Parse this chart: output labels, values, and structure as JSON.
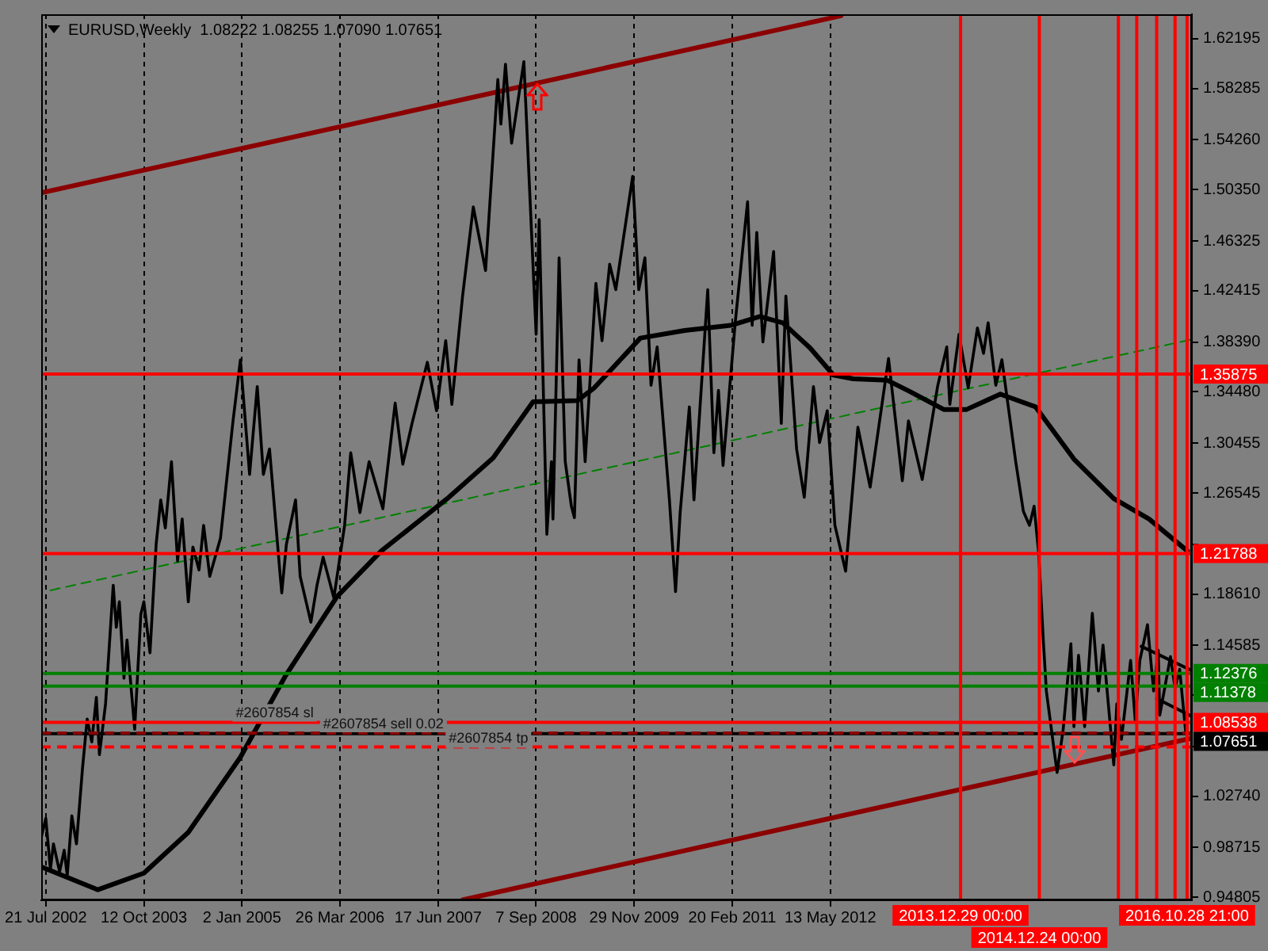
{
  "chart_data": {
    "type": "line",
    "title": "EURUSD,Weekly  1.08222 1.08255 1.07090 1.07651",
    "xlim": [
      "2002-06-30",
      "2016-11-20"
    ],
    "xticks": [
      {
        "value": "2002-07-21",
        "label": "21 Jul 2002"
      },
      {
        "value": "2003-10-12",
        "label": "12 Oct 2003"
      },
      {
        "value": "2005-01-02",
        "label": "2 Jan 2005"
      },
      {
        "value": "2006-03-26",
        "label": "26 Mar 2006"
      },
      {
        "value": "2007-06-17",
        "label": "17 Jun 2007"
      },
      {
        "value": "2008-09-07",
        "label": "7 Sep 2008"
      },
      {
        "value": "2009-11-29",
        "label": "29 Nov 2009"
      },
      {
        "value": "2011-02-20",
        "label": "20 Feb 2011"
      },
      {
        "value": "2012-05-13",
        "label": "13 May 2012"
      }
    ],
    "ylim": [
      0.9457,
      1.6412
    ],
    "yticks": [
      1.62195,
      1.58285,
      {
        "value": 1.5426,
        "label": "1.54260"
      },
      {
        "value": 1.5035,
        "label": "1.50350"
      },
      1.46325,
      1.42415,
      {
        "value": 1.3839,
        "label": "1.38390"
      },
      {
        "value": 1.3448,
        "label": "1.34480"
      },
      1.30455,
      1.26545,
      {
        "value": 1.2252,
        "label": null
      },
      {
        "value": 1.1861,
        "label": "1.18610"
      },
      1.14585,
      {
        "value": 1.10675,
        "label": null
      },
      {
        "value": 1.0665,
        "label": null
      },
      {
        "value": 1.0274,
        "label": "1.02740"
      },
      0.98715,
      0.94805
    ],
    "grid": "x",
    "series": [
      {
        "color": "#000000",
        "x": [
          "2002-06-30",
          "2002-07-21",
          "2002-08-11",
          "2002-08-25",
          "2002-09-22",
          "2002-10-13",
          "2002-10-27",
          "2002-11-17",
          "2002-12-08",
          "2003-01-05",
          "2003-01-26",
          "2003-02-16",
          "2003-03-09",
          "2003-03-23",
          "2003-04-20",
          "2003-05-25",
          "2003-06-08",
          "2003-06-22",
          "2003-07-13",
          "2003-07-27",
          "2003-08-31",
          "2003-09-28",
          "2003-10-12",
          "2003-11-09",
          "2003-12-07",
          "2003-12-28",
          "2004-01-18",
          "2004-02-15",
          "2004-03-14",
          "2004-04-04",
          "2004-05-02",
          "2004-05-23",
          "2004-06-20",
          "2004-07-11",
          "2004-08-08",
          "2004-09-26",
          "2004-10-24",
          "2004-11-21",
          "2004-12-26",
          "2005-02-06",
          "2005-03-13",
          "2005-04-10",
          "2005-05-08",
          "2005-06-26",
          "2005-07-03",
          "2005-07-24",
          "2005-09-04",
          "2005-09-25",
          "2005-11-13",
          "2005-12-11",
          "2006-01-08",
          "2006-02-26",
          "2006-04-16",
          "2006-05-14",
          "2006-06-25",
          "2006-08-06",
          "2006-10-08",
          "2006-12-03",
          "2007-01-07",
          "2007-02-18",
          "2007-04-29",
          "2007-06-10",
          "2007-07-22",
          "2007-08-19",
          "2007-10-07",
          "2007-11-25",
          "2008-01-20",
          "2008-03-16",
          "2008-03-30",
          "2008-04-20",
          "2008-05-18",
          "2008-07-13",
          "2008-08-17",
          "2008-09-07",
          "2008-09-21",
          "2008-10-26",
          "2008-11-16",
          "2008-11-23",
          "2008-12-21",
          "2009-01-18",
          "2009-02-15",
          "2009-03-01",
          "2009-03-22",
          "2009-04-19",
          "2009-06-07",
          "2009-07-05",
          "2009-08-09",
          "2009-09-06",
          "2009-11-22",
          "2009-12-20",
          "2010-01-17",
          "2010-02-14",
          "2010-03-14",
          "2010-05-09",
          "2010-06-06",
          "2010-06-27",
          "2010-08-08",
          "2010-08-29",
          "2010-10-31",
          "2010-11-28",
          "2010-12-19",
          "2011-01-09",
          "2011-03-06",
          "2011-05-01",
          "2011-05-22",
          "2011-06-12",
          "2011-07-10",
          "2011-08-28",
          "2011-10-02",
          "2011-10-23",
          "2011-12-11",
          "2012-01-15",
          "2012-02-26",
          "2012-03-25",
          "2012-04-29",
          "2012-06-03",
          "2012-07-22",
          "2012-09-16",
          "2012-11-11",
          "2013-02-03",
          "2013-04-07",
          "2013-05-05",
          "2013-07-07",
          "2013-09-15",
          "2013-10-27",
          "2013-11-10",
          "2013-12-22",
          "2014-02-02",
          "2014-03-16",
          "2014-04-13",
          "2014-05-04",
          "2014-06-08",
          "2014-07-06",
          "2014-09-07",
          "2014-10-12",
          "2014-11-09",
          "2014-11-30",
          "2014-12-21",
          "2015-01-11",
          "2015-01-25",
          "2015-03-15",
          "2015-04-12",
          "2015-05-17",
          "2015-05-31",
          "2015-06-21",
          "2015-07-19",
          "2015-08-23",
          "2015-09-20",
          "2015-10-11",
          "2015-11-29",
          "2015-12-13",
          "2016-01-03",
          "2016-02-14",
          "2016-03-06",
          "2016-03-27",
          "2016-05-01",
          "2016-05-29",
          "2016-06-19",
          "2016-06-26",
          "2016-08-14",
          "2016-09-04",
          "2016-09-25",
          "2016-10-23"
        ],
        "values": [
          0.995,
          1.01,
          0.97,
          0.99,
          0.968,
          0.985,
          0.965,
          1.012,
          0.99,
          1.05,
          1.088,
          1.07,
          1.105,
          1.06,
          1.1,
          1.193,
          1.16,
          1.18,
          1.12,
          1.15,
          1.08,
          1.17,
          1.18,
          1.14,
          1.225,
          1.26,
          1.238,
          1.29,
          1.212,
          1.245,
          1.18,
          1.223,
          1.205,
          1.24,
          1.2,
          1.23,
          1.275,
          1.32,
          1.37,
          1.28,
          1.349,
          1.28,
          1.3,
          1.2,
          1.187,
          1.225,
          1.26,
          1.2,
          1.164,
          1.193,
          1.215,
          1.183,
          1.24,
          1.297,
          1.25,
          1.29,
          1.253,
          1.336,
          1.288,
          1.32,
          1.368,
          1.33,
          1.385,
          1.335,
          1.42,
          1.49,
          1.44,
          1.59,
          1.555,
          1.602,
          1.54,
          1.604,
          1.47,
          1.39,
          1.48,
          1.233,
          1.29,
          1.245,
          1.45,
          1.29,
          1.255,
          1.246,
          1.37,
          1.29,
          1.43,
          1.385,
          1.445,
          1.425,
          1.514,
          1.425,
          1.45,
          1.35,
          1.38,
          1.26,
          1.188,
          1.25,
          1.333,
          1.26,
          1.425,
          1.297,
          1.346,
          1.287,
          1.4,
          1.494,
          1.397,
          1.47,
          1.384,
          1.455,
          1.32,
          1.42,
          1.3,
          1.262,
          1.349,
          1.305,
          1.33,
          1.24,
          1.204,
          1.317,
          1.27,
          1.371,
          1.275,
          1.322,
          1.276,
          1.349,
          1.38,
          1.335,
          1.39,
          1.348,
          1.395,
          1.375,
          1.399,
          1.35,
          1.37,
          1.29,
          1.251,
          1.24,
          1.255,
          1.218,
          1.15,
          1.11,
          1.046,
          1.08,
          1.147,
          1.082,
          1.138,
          1.082,
          1.171,
          1.11,
          1.146,
          1.052,
          1.1,
          1.072,
          1.134,
          1.087,
          1.134,
          1.162,
          1.11,
          1.142,
          1.091,
          1.137,
          1.112,
          1.127,
          1.077
        ]
      },
      {
        "color": "#000000",
        "x": [
          "2002-06-30",
          "2003-03-16",
          "2003-10-12",
          "2004-05-02",
          "2004-12-26",
          "2005-07-17",
          "2006-03-12",
          "2006-10-01",
          "2007-07-29",
          "2008-02-24",
          "2008-08-24",
          "2009-03-15",
          "2009-05-31",
          "2009-12-27",
          "2010-07-18",
          "2011-02-13",
          "2011-06-26",
          "2011-10-09",
          "2012-02-12",
          "2012-05-27",
          "2012-08-26",
          "2013-01-27",
          "2013-05-12",
          "2013-10-13",
          "2014-01-26",
          "2014-06-29",
          "2014-12-07",
          "2015-05-31",
          "2015-11-29",
          "2016-05-08",
          "2016-10-30"
        ],
        "values": [
          0.972,
          0.954,
          0.967,
          0.999,
          1.058,
          1.121,
          1.184,
          1.22,
          1.261,
          1.293,
          1.337,
          1.338,
          1.348,
          1.387,
          1.393,
          1.397,
          1.404,
          1.399,
          1.379,
          1.358,
          1.355,
          1.354,
          1.345,
          1.331,
          1.331,
          1.343,
          1.333,
          1.292,
          1.261,
          1.245,
          1.22
        ]
      },
      {
        "color": "#8b0000",
        "x": [
          "2002-06-30",
          "2012-07-01"
        ],
        "values": [
          1.501,
          1.64
        ]
      },
      {
        "color": "#8b0000",
        "x": [
          "2007-10-07",
          "2016-11-20"
        ],
        "values": [
          0.946,
          1.073
        ]
      },
      {
        "color": "#008000",
        "line_style": "dashed",
        "x": [
          "2002-08-11",
          "2016-11-20"
        ],
        "values": [
          1.189,
          1.386
        ]
      },
      {
        "color": "#000000",
        "x": [
          "2016-04-03",
          "2016-11-20"
        ],
        "values": [
          1.145,
          1.126
        ]
      },
      {
        "color": "#000000",
        "x": [
          "2016-06-12",
          "2016-11-20"
        ],
        "values": [
          1.104,
          1.09
        ]
      }
    ],
    "ref_lines": [
      {
        "axis": "y",
        "value": 1.35875,
        "label": "1.35875",
        "color": "#ff0000"
      },
      {
        "axis": "y",
        "value": 1.21788,
        "label": "1.21788",
        "color": "#ff0000"
      },
      {
        "axis": "y",
        "value": 1.12376,
        "label": "1.12376",
        "color": "#008000"
      },
      {
        "axis": "y",
        "value": 1.11378,
        "label": "1.11378",
        "color": "#008000"
      },
      {
        "axis": "y",
        "value": 1.08538,
        "label": "1.08538",
        "color": "#ff0000"
      },
      {
        "axis": "y",
        "value": 1.07651,
        "label": "1.07651",
        "color": "#000000"
      },
      {
        "axis": "y",
        "value": 1.077,
        "color": "#8b0000",
        "line_style": "dashed"
      },
      {
        "axis": "y",
        "value": 1.066,
        "color": "#ff0000",
        "line_style": "dashed"
      },
      {
        "axis": "x",
        "value": "2013-12-29",
        "label": "2013.12.29 00:00",
        "color": "#ff0000"
      },
      {
        "axis": "x",
        "value": "2014-12-24",
        "label": "2014.12.24 00:00",
        "color": "#ff0000"
      },
      {
        "axis": "x",
        "value": "2015-12-20",
        "color": "#ff0000"
      },
      {
        "axis": "x",
        "value": "2016-03-13",
        "color": "#ff0000"
      },
      {
        "axis": "x",
        "value": "2016-06-12",
        "color": "#ff0000"
      },
      {
        "axis": "x",
        "value": "2016-09-04",
        "color": "#ff0000"
      },
      {
        "axis": "x",
        "value": "2016-10-28T21:00",
        "label": "2016.10.28 21:00",
        "color": "#ff0000"
      }
    ],
    "annotations": [
      {
        "text": "#2607854 sl",
        "x": "2004-12-05",
        "y": 1.08538
      },
      {
        "text": "#2607854 sell 0.02",
        "x": "2006-01-08",
        "y": 1.077
      },
      {
        "text": "#2607854 tp",
        "x": "2007-08-05",
        "y": 1.066
      }
    ]
  }
}
